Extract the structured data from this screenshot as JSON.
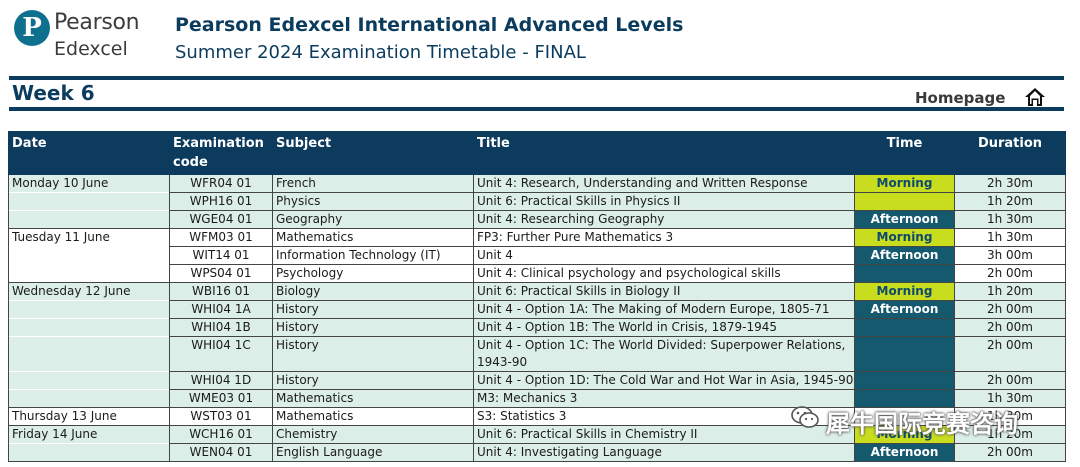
{
  "brand": {
    "name_line1": "Pearson",
    "name_line2": "Edexcel",
    "logo_letter": "P"
  },
  "header": {
    "title": "Pearson Edexcel International Advanced Levels",
    "subtitle": "Summer 2024 Examination Timetable - FINAL"
  },
  "week_label": "Week 6",
  "homepage_label": "Homepage",
  "columns": {
    "date": "Date",
    "code_line1": "Examination",
    "code_line2": "code",
    "subject": "Subject",
    "title": "Title",
    "time": "Time",
    "duration": "Duration"
  },
  "rows": [
    {
      "date": "Monday 10 June",
      "code": "WFR04 01",
      "subject": "French",
      "title": "Unit 4: Research, Understanding and Written Response",
      "time": "Morning",
      "duration": "2h 30m"
    },
    {
      "date": "",
      "code": "WPH16 01",
      "subject": "Physics",
      "title": "Unit 6: Practical Skills in Physics II",
      "time": "",
      "duration": "1h 20m"
    },
    {
      "date": "",
      "code": "WGE04 01",
      "subject": "Geography",
      "title": "Unit 4: Researching Geography",
      "time": "Afternoon",
      "duration": "1h 30m"
    },
    {
      "date": "Tuesday 11 June",
      "code": "WFM03 01",
      "subject": "Mathematics",
      "title": "FP3: Further Pure Mathematics 3",
      "time": "Morning",
      "duration": "1h 30m"
    },
    {
      "date": "",
      "code": "WIT14 01",
      "subject": "Information Technology (IT)",
      "title": "Unit 4",
      "time": "Afternoon",
      "duration": "3h 00m"
    },
    {
      "date": "",
      "code": "WPS04 01",
      "subject": "Psychology",
      "title": "Unit 4: Clinical psychology and psychological skills",
      "time": "",
      "duration": "2h 00m"
    },
    {
      "date": "Wednesday 12 June",
      "code": "WBI16 01",
      "subject": "Biology",
      "title": "Unit 6: Practical Skills in Biology II",
      "time": "Morning",
      "duration": "1h 20m"
    },
    {
      "date": "",
      "code": "WHI04 1A",
      "subject": "History",
      "title": "Unit 4 - Option 1A: The Making of Modern Europe, 1805-71",
      "time": "Afternoon",
      "duration": "2h 00m"
    },
    {
      "date": "",
      "code": "WHI04 1B",
      "subject": "History",
      "title": "Unit 4 - Option 1B: The World in Crisis, 1879-1945",
      "time": "",
      "duration": "2h 00m"
    },
    {
      "date": "",
      "code": "WHI04 1C",
      "subject": "History",
      "title": "Unit 4 - Option 1C: The World Divided: Superpower Relations, 1943-90",
      "time": "",
      "duration": "2h 00m"
    },
    {
      "date": "",
      "code": "WHI04 1D",
      "subject": "History",
      "title": "Unit 4 - Option 1D: The Cold War and Hot War in Asia, 1945-90",
      "time": "",
      "duration": "2h 00m"
    },
    {
      "date": "",
      "code": "WME03 01",
      "subject": "Mathematics",
      "title": "M3: Mechanics 3",
      "time": "",
      "duration": "1h 30m"
    },
    {
      "date": "Thursday 13 June",
      "code": "WST03 01",
      "subject": "Mathematics",
      "title": "S3: Statistics 3",
      "time": "",
      "duration": "1h 30m"
    },
    {
      "date": "Friday 14 June",
      "code": "WCH16 01",
      "subject": "Chemistry",
      "title": "Unit 6: Practical Skills in Chemistry II",
      "time": "Morning",
      "duration": "1h 20m"
    },
    {
      "date": "",
      "code": "WEN04 01",
      "subject": "English Language",
      "title": "Unit 4: Investigating Language",
      "time": "Afternoon",
      "duration": "2h 00m"
    }
  ],
  "watermark": "犀牛国际竞赛咨询",
  "colors": {
    "navy": "#0d3b5e",
    "teal_row": "#dceee8",
    "morning": "#c9dd1f",
    "afternoon": "#14596e"
  }
}
